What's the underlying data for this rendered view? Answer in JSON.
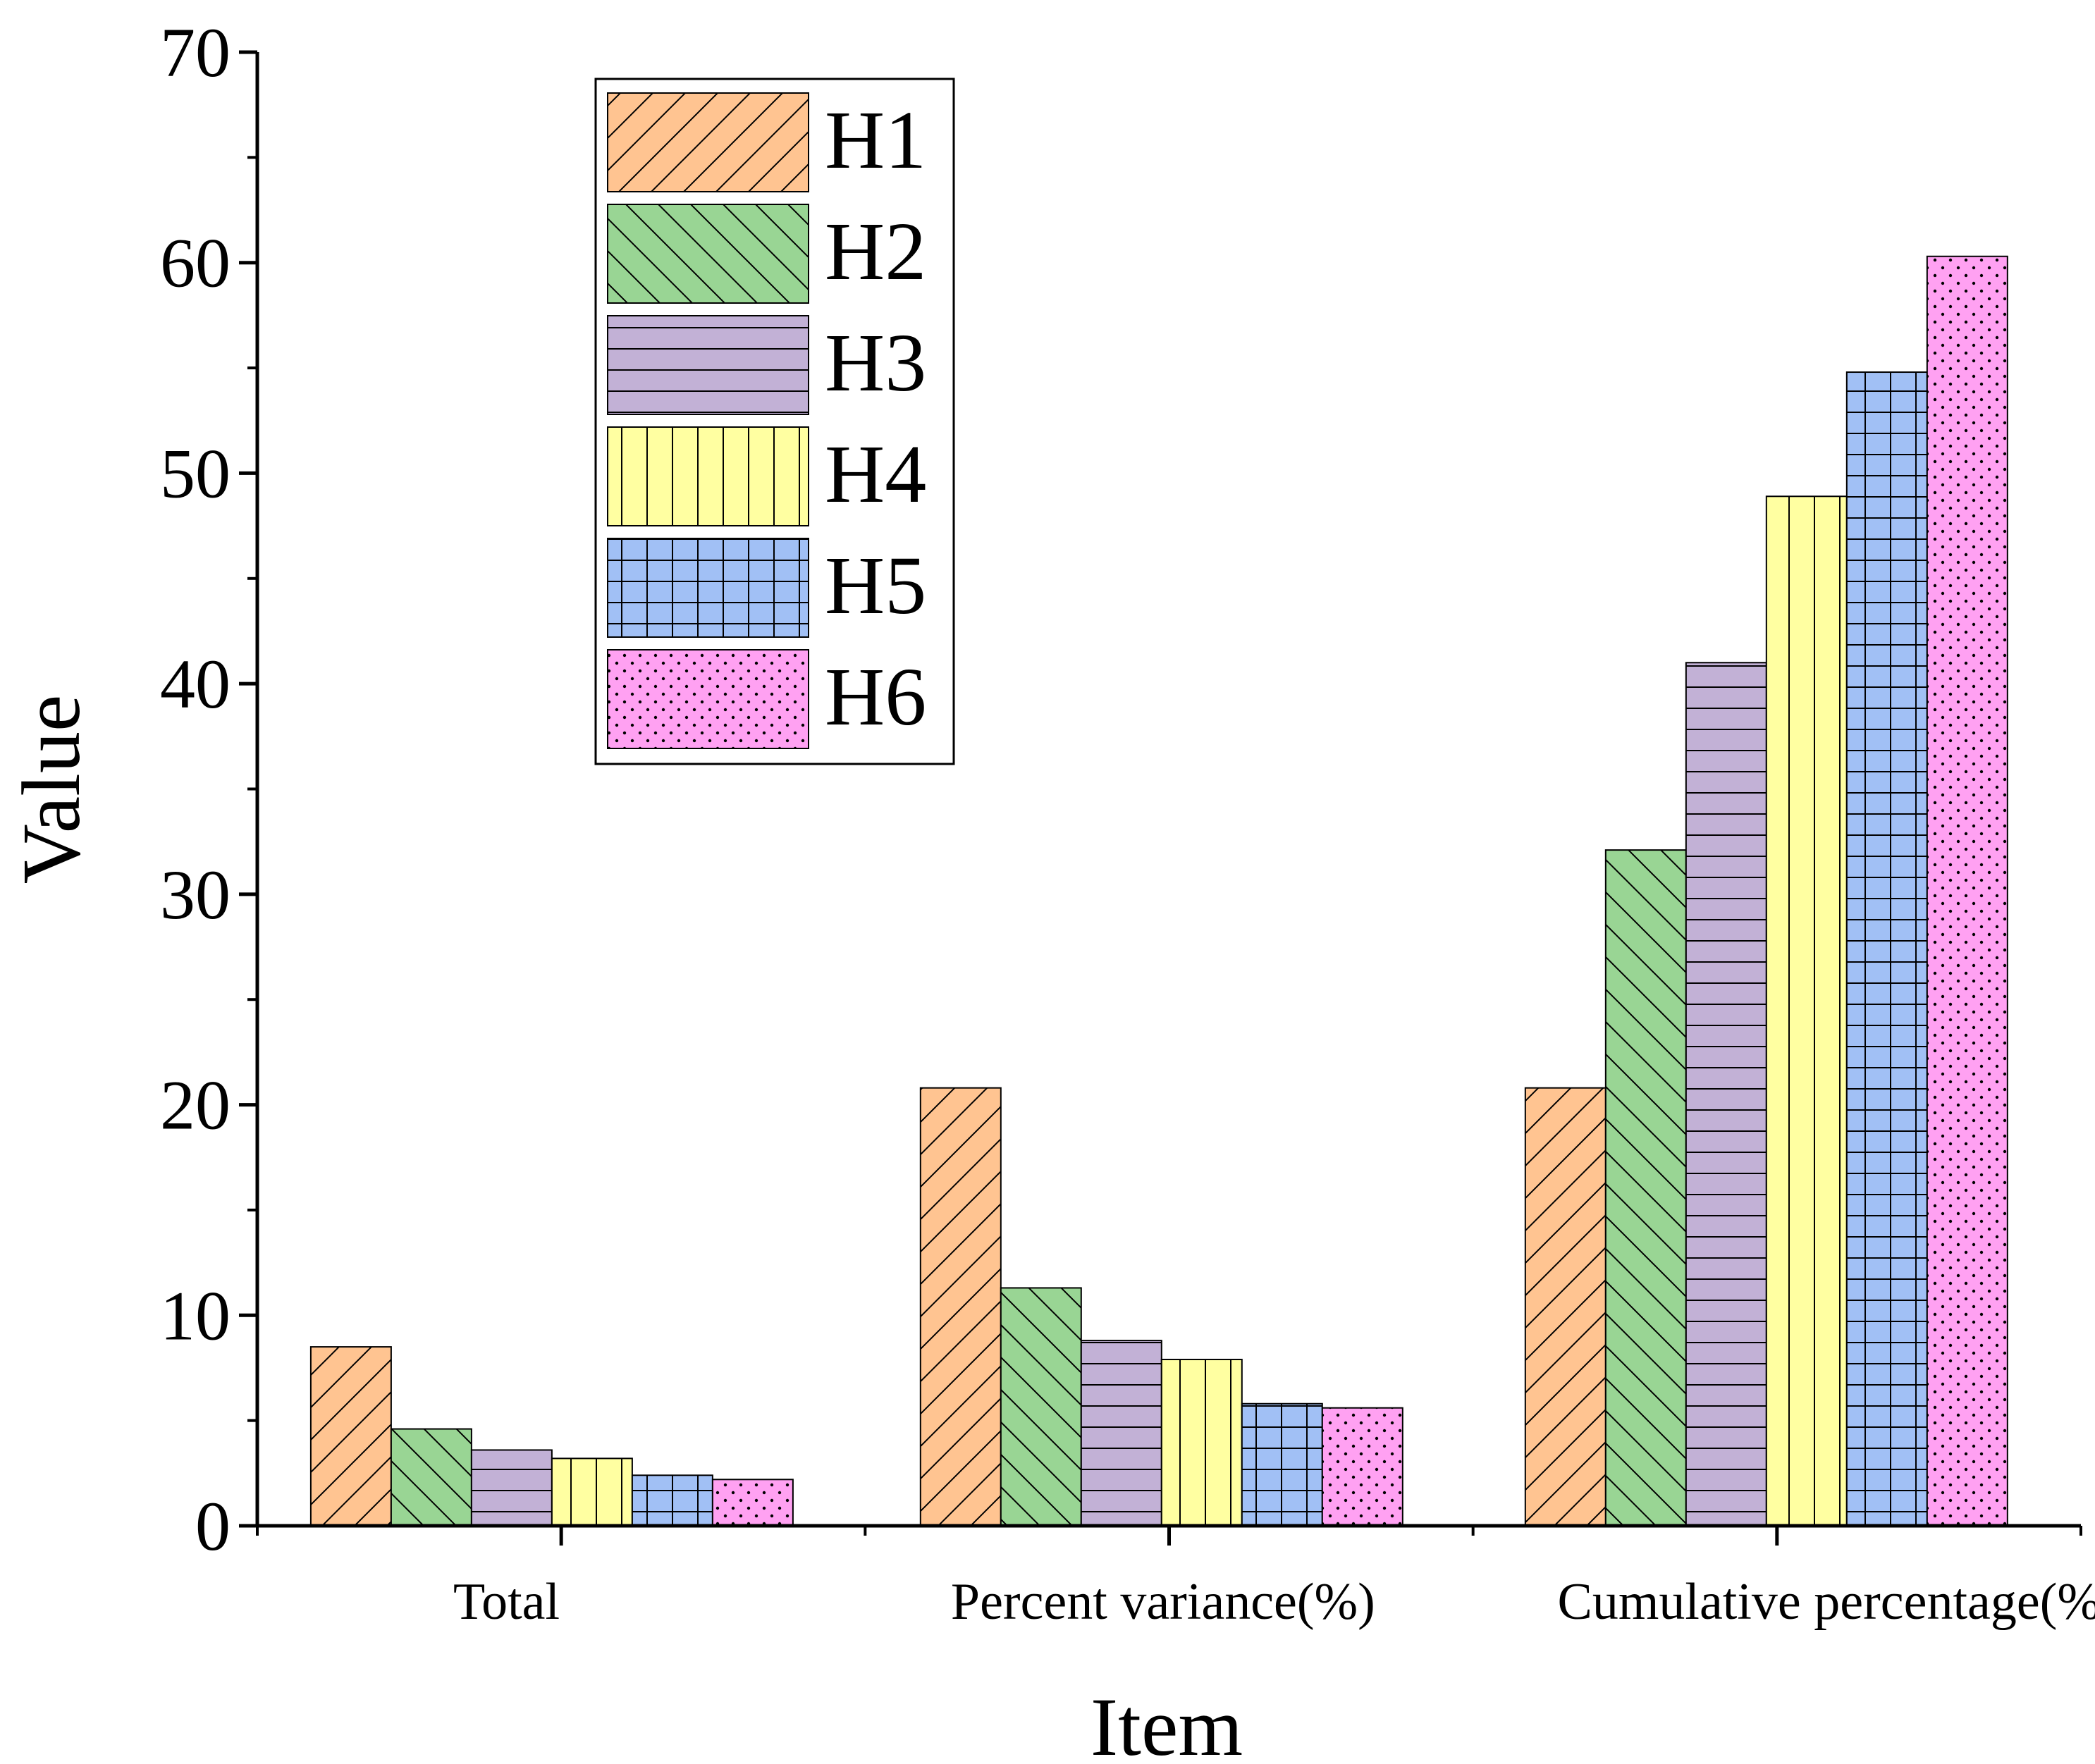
{
  "chart_data": {
    "type": "bar",
    "xlabel": "Item",
    "ylabel": "Value",
    "ylim": [
      0,
      70
    ],
    "yticks": [
      "0",
      "10",
      "20",
      "30",
      "40",
      "50",
      "60",
      "70"
    ],
    "categories": [
      "Total",
      "Percent variance(%)",
      "Cumulative percentage(%)"
    ],
    "legend_position": "top-left",
    "grid": false,
    "series": [
      {
        "name": "H1",
        "color": "#FFC491",
        "pattern": "diagonal-forward",
        "values": [
          8.5,
          20.8,
          20.8
        ]
      },
      {
        "name": "H2",
        "color": "#99D594",
        "pattern": "diagonal-back",
        "values": [
          4.6,
          11.3,
          32.1
        ]
      },
      {
        "name": "H3",
        "color": "#C2B1D6",
        "pattern": "horizontal",
        "values": [
          3.6,
          8.8,
          41.0
        ]
      },
      {
        "name": "H4",
        "color": "#FFFFA1",
        "pattern": "vertical",
        "values": [
          3.2,
          7.9,
          48.9
        ]
      },
      {
        "name": "H5",
        "color": "#A1C0F5",
        "pattern": "grid",
        "values": [
          2.4,
          5.8,
          54.8
        ]
      },
      {
        "name": "H6",
        "color": "#FFA1F2",
        "pattern": "dots",
        "values": [
          2.2,
          5.6,
          60.3
        ]
      }
    ]
  }
}
